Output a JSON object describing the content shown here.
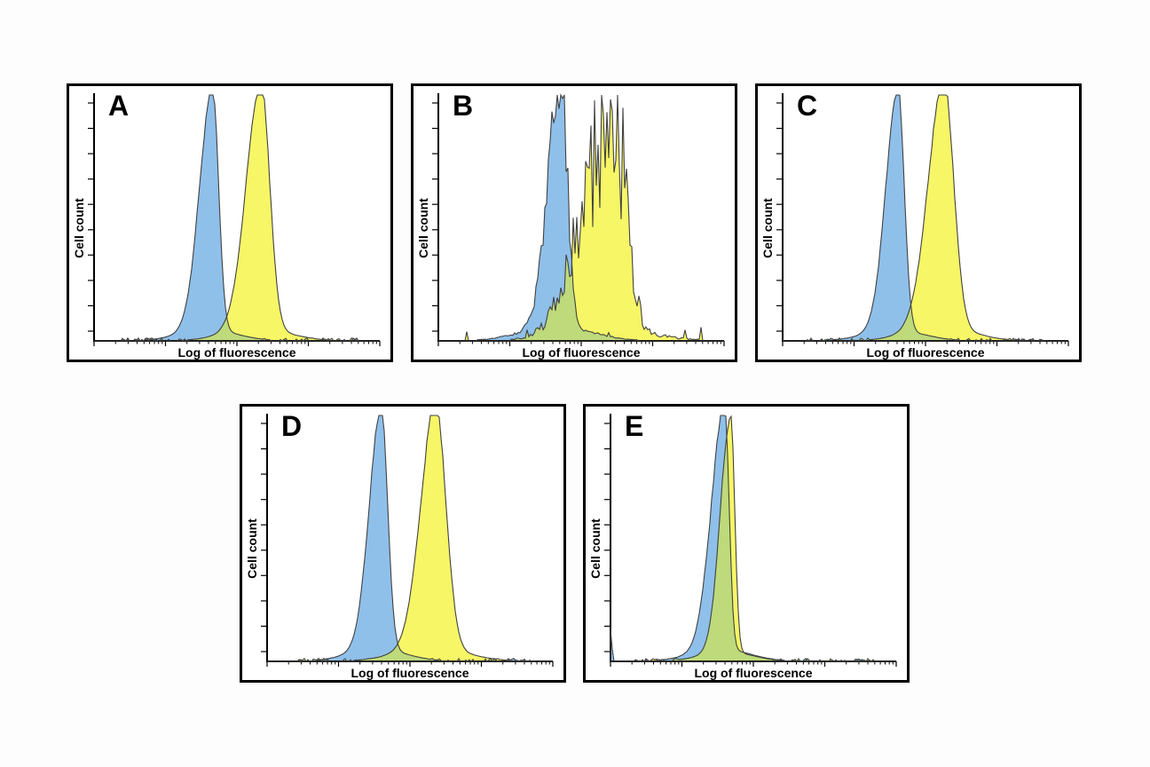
{
  "figure": {
    "background": "#fdfdfd",
    "panel_background": "#ffffff",
    "panel_border_color": "#000000",
    "panel_count": 5
  },
  "colors": {
    "blue_fill": "#8FC0EA",
    "yellow_fill": "#F7F666",
    "overlap_fill": "#BEDA7A",
    "outline": "#414141",
    "axis": "#000000",
    "text": "#000000"
  },
  "chart_data": {
    "type": "area",
    "chart_kind": "flow-cytometry-overlay-histograms",
    "xlabel": "Log of fluorescence",
    "ylabel": "Cell count",
    "x_axis": {
      "scale": "log",
      "decades": 4,
      "tick_labels": "none"
    },
    "y_axis": {
      "tick_count": 10,
      "tick_labels": "none"
    },
    "panels": [
      {
        "label": "A",
        "series": [
          {
            "name": "blue-peak",
            "fill": "#8FC0EA",
            "peak_x": 0.415,
            "sigma_left": 0.045,
            "sigma_right": 0.021,
            "height": 0.985,
            "skirt_amp": 0.045,
            "skirt_sigma": 0.1,
            "noise": 0.035,
            "noise_type": "smooth",
            "seed": 11
          },
          {
            "name": "yellow-peak",
            "fill": "#F7F666",
            "peak_x": 0.585,
            "sigma_left": 0.052,
            "sigma_right": 0.03,
            "height": 1.0,
            "skirt_amp": 0.05,
            "skirt_sigma": 0.11,
            "noise": 0.035,
            "noise_type": "smooth",
            "seed": 21
          }
        ]
      },
      {
        "label": "B",
        "series": [
          {
            "name": "blue-peak",
            "fill": "#8FC0EA",
            "peak_x": 0.43,
            "sigma_left": 0.045,
            "sigma_right": 0.022,
            "height": 0.99,
            "skirt_amp": 0.06,
            "skirt_sigma": 0.12,
            "noise": 0.16,
            "noise_type": "spiky",
            "seed": 31,
            "floor": {
              "prob": 0.05,
              "amp": 0.05
            }
          },
          {
            "name": "yellow-peak",
            "fill": "#F7F666",
            "peak_x": 0.615,
            "sigma_left": 0.105,
            "sigma_right": 0.042,
            "height": 0.86,
            "skirt_amp": 0.05,
            "skirt_sigma": 0.15,
            "noise": 0.38,
            "noise_type": "spiky",
            "seed": 41,
            "floor": {
              "prob": 0.07,
              "amp": 0.06
            }
          }
        ]
      },
      {
        "label": "C",
        "series": [
          {
            "name": "blue-peak",
            "fill": "#8FC0EA",
            "peak_x": 0.405,
            "sigma_left": 0.043,
            "sigma_right": 0.021,
            "height": 0.985,
            "skirt_amp": 0.045,
            "skirt_sigma": 0.1,
            "noise": 0.04,
            "noise_type": "smooth",
            "seed": 51
          },
          {
            "name": "yellow-peak",
            "fill": "#F7F666",
            "peak_x": 0.565,
            "sigma_left": 0.055,
            "sigma_right": 0.034,
            "height": 0.995,
            "skirt_amp": 0.06,
            "skirt_sigma": 0.11,
            "noise": 0.045,
            "noise_type": "smooth",
            "seed": 61
          }
        ]
      },
      {
        "label": "D",
        "series": [
          {
            "name": "blue-peak",
            "fill": "#8FC0EA",
            "peak_x": 0.4,
            "sigma_left": 0.042,
            "sigma_right": 0.022,
            "height": 0.99,
            "skirt_amp": 0.05,
            "skirt_sigma": 0.1,
            "noise": 0.04,
            "noise_type": "smooth",
            "seed": 71
          },
          {
            "name": "yellow-peak",
            "fill": "#F7F666",
            "peak_x": 0.59,
            "sigma_left": 0.052,
            "sigma_right": 0.036,
            "height": 0.995,
            "skirt_amp": 0.055,
            "skirt_sigma": 0.12,
            "noise": 0.04,
            "noise_type": "smooth",
            "seed": 81
          }
        ]
      },
      {
        "label": "E",
        "series": [
          {
            "name": "blue-peak",
            "fill": "#8FC0EA",
            "peak_x": 0.4,
            "sigma_left": 0.046,
            "sigma_right": 0.015,
            "height": 1.0,
            "skirt_amp": 0.05,
            "skirt_sigma": 0.1,
            "noise": 0.05,
            "noise_type": "smooth",
            "seed": 91,
            "edge_spikes": [
              0.13,
              0.05
            ]
          },
          {
            "name": "yellow-peak",
            "fill": "#F7F666",
            "peak_x": 0.421,
            "sigma_left": 0.036,
            "sigma_right": 0.014,
            "height": 0.965,
            "skirt_amp": 0.04,
            "skirt_sigma": 0.09,
            "noise": 0.04,
            "noise_type": "smooth",
            "seed": 101
          }
        ]
      }
    ]
  }
}
